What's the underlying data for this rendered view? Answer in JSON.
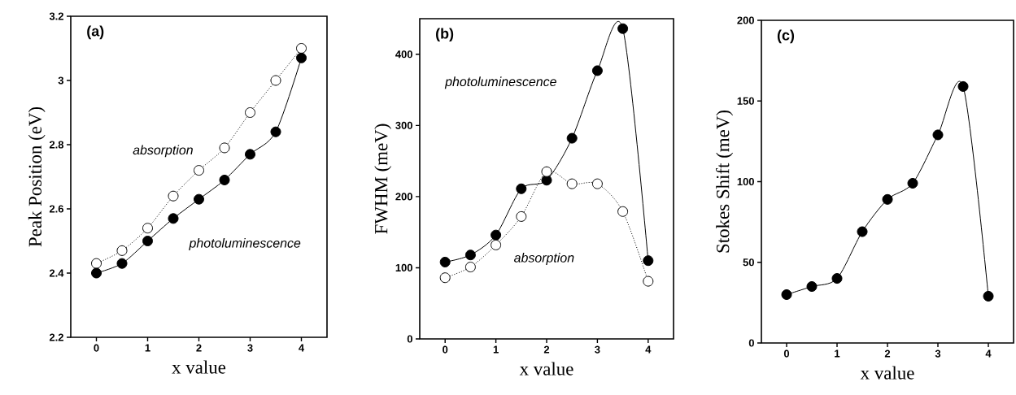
{
  "chart_data": [
    {
      "type": "line",
      "xlabel": "x value",
      "ylabel": "Peak Position (eV)",
      "annotations": [
        "(a)"
      ],
      "x": [
        0,
        0.5,
        1,
        1.5,
        2,
        2.5,
        3,
        3.5,
        4
      ],
      "xlim": [
        -0.5,
        4.5
      ],
      "ylim": [
        2.2,
        3.2
      ],
      "xticks": [
        0,
        1,
        2,
        3,
        4
      ],
      "yticks": [
        2.2,
        2.4,
        2.6,
        2.8,
        3,
        3.2
      ],
      "marker": "circle",
      "series": [
        {
          "name": "absorption",
          "color": "#ffffff",
          "line_style": "dotted",
          "values": [
            2.43,
            2.47,
            2.54,
            2.64,
            2.72,
            2.79,
            2.9,
            3.0,
            3.1
          ]
        },
        {
          "name": "photoluminescence",
          "color": "#000000",
          "line_style": "solid",
          "values": [
            2.4,
            2.43,
            2.5,
            2.57,
            2.63,
            2.69,
            2.77,
            2.84,
            3.07
          ]
        }
      ]
    },
    {
      "type": "line",
      "xlabel": "x value",
      "ylabel": "FWHM (meV)",
      "annotations": [
        "(b)"
      ],
      "x": [
        0,
        0.5,
        1,
        1.5,
        2,
        2.5,
        3,
        3.5,
        4
      ],
      "xlim": [
        -0.5,
        4.5
      ],
      "ylim": [
        0,
        450
      ],
      "xticks": [
        0,
        1,
        2,
        3,
        4
      ],
      "yticks": [
        0,
        100,
        200,
        300,
        400
      ],
      "marker": "circle",
      "series": [
        {
          "name": "photoluminescence",
          "color": "#000000",
          "line_style": "solid",
          "values": [
            108,
            118,
            146,
            211,
            223,
            282,
            377,
            436,
            110
          ]
        },
        {
          "name": "absorption",
          "color": "#ffffff",
          "line_style": "dotted",
          "values": [
            86,
            101,
            132,
            172,
            235,
            218,
            218,
            179,
            81
          ]
        }
      ]
    },
    {
      "type": "line",
      "xlabel": "x value",
      "ylabel": "Stokes Shift (meV)",
      "annotations": [
        "(c)"
      ],
      "x": [
        0,
        0.5,
        1,
        1.5,
        2,
        2.5,
        3,
        3.5,
        4
      ],
      "xlim": [
        -0.5,
        4.5
      ],
      "ylim": [
        0,
        200
      ],
      "xticks": [
        0,
        1,
        2,
        3,
        4
      ],
      "yticks": [
        0,
        50,
        100,
        150,
        200
      ],
      "marker": "circle",
      "series": [
        {
          "color": "#000000",
          "line_style": "solid",
          "values": [
            30,
            35,
            40,
            69,
            89,
            99,
            129,
            159,
            29
          ]
        }
      ]
    }
  ]
}
